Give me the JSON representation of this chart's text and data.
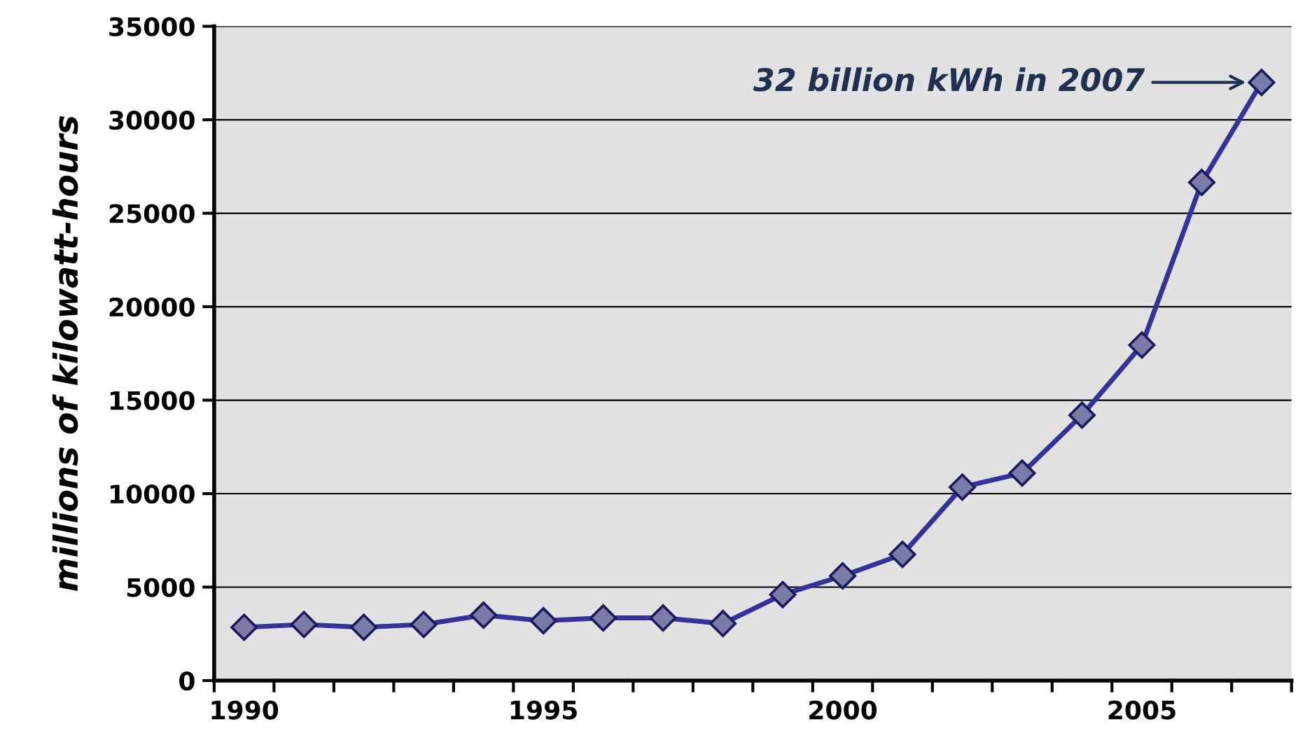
{
  "chart_data": {
    "type": "line",
    "ylabel": "millions of kilowatt-hours",
    "categories": [
      "1990",
      null,
      null,
      null,
      null,
      "1995",
      null,
      null,
      null,
      null,
      "2000",
      null,
      null,
      null,
      null,
      "2005",
      null,
      null
    ],
    "series": [
      {
        "color": "#333399",
        "values": [
          2850,
          3000,
          2850,
          3000,
          3500,
          3200,
          3350,
          3350,
          3050,
          4600,
          5600,
          6750,
          10350,
          11100,
          14200,
          17950,
          26650,
          32000
        ]
      }
    ],
    "ylim": [
      0,
      35000
    ],
    "yticks": [
      0,
      5000,
      10000,
      15000,
      20000,
      25000,
      30000,
      35000
    ],
    "grid": "y",
    "marker": "diamond",
    "line_style": "solid",
    "annotations": [
      "32 billion kWh in 2007"
    ]
  }
}
